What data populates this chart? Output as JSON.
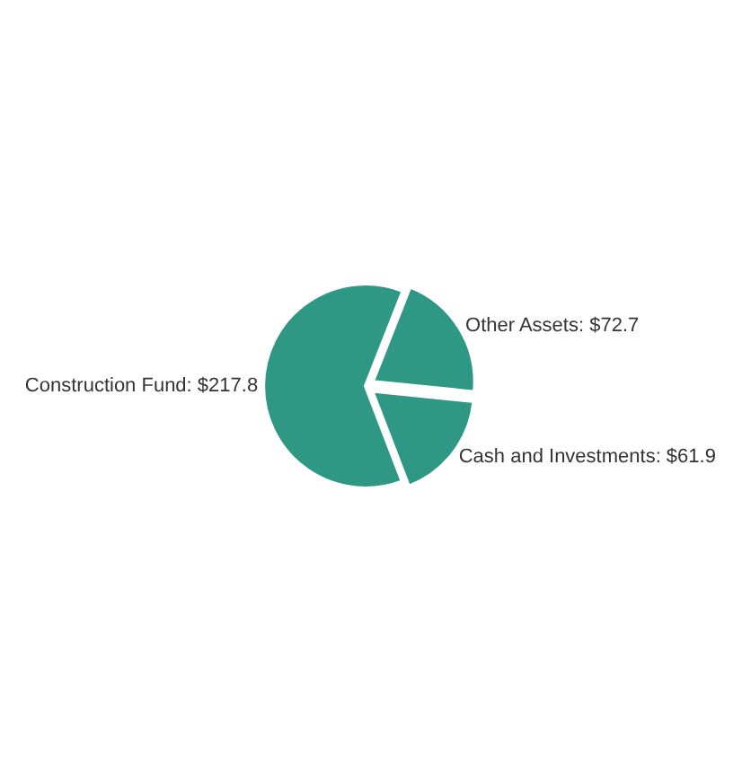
{
  "chart_data": {
    "type": "pie",
    "categories": [
      "Construction Fund",
      "Other Assets",
      "Cash and Investments"
    ],
    "values": [
      217.8,
      72.7,
      61.9
    ],
    "value_labels": [
      "$217.8",
      "$72.7",
      "$61.9"
    ],
    "colors": [
      "#2e9884",
      "#2e9884",
      "#2e9884"
    ],
    "legend": false
  }
}
